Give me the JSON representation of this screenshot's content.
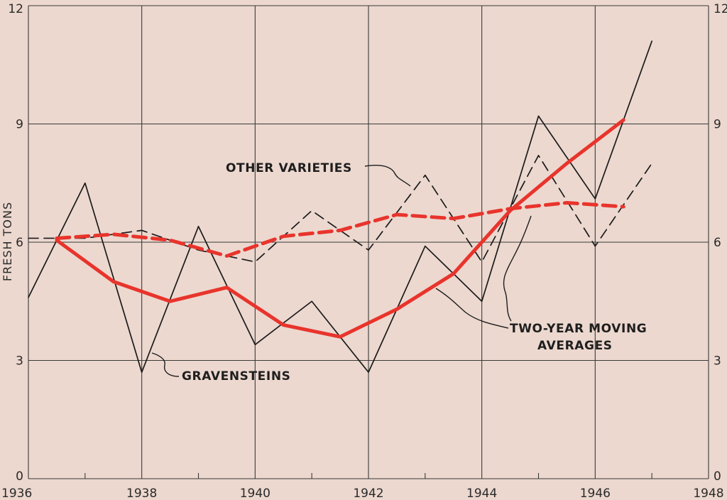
{
  "chart_data": {
    "type": "line",
    "ylabel": "FRESH TONS",
    "xlim": [
      1936,
      1948
    ],
    "ylim": [
      0,
      12
    ],
    "x_ticks": [
      "1936",
      "1938",
      "1940",
      "1942",
      "1944",
      "1946",
      "1948"
    ],
    "y_ticks": [
      "0",
      "3",
      "6",
      "9",
      "12"
    ],
    "grid": true,
    "series": [
      {
        "name": "GRAVENSTEINS",
        "style": "thin-solid",
        "color": "#1a1a1a",
        "x": [
          1936,
          1937,
          1938,
          1939,
          1940,
          1941,
          1942,
          1943,
          1944,
          1945,
          1946,
          1947
        ],
        "y": [
          4.6,
          7.5,
          2.7,
          6.4,
          3.4,
          4.5,
          2.7,
          5.9,
          4.5,
          9.2,
          7.1,
          11.1
        ]
      },
      {
        "name": "OTHER VARIETIES",
        "style": "thin-dashed",
        "color": "#1a1a1a",
        "x": [
          1936,
          1937,
          1938,
          1939,
          1940,
          1941,
          1942,
          1943,
          1944,
          1945,
          1946,
          1947
        ],
        "y": [
          6.1,
          6.1,
          6.3,
          5.8,
          5.5,
          6.8,
          5.8,
          7.7,
          5.5,
          8.2,
          5.9,
          8.0
        ]
      },
      {
        "name": "TWO-YEAR MOVING AVERAGES",
        "style": "thick-solid",
        "color": "#e8342c",
        "x": [
          1936.5,
          1937.5,
          1938.5,
          1939.5,
          1940.5,
          1941.5,
          1942.5,
          1943.5,
          1944.5,
          1945.5,
          1946.5
        ],
        "y": [
          6.05,
          5.0,
          4.5,
          4.85,
          3.9,
          3.6,
          4.3,
          5.2,
          6.8,
          8.0,
          9.1
        ]
      },
      {
        "name": "TWO-YEAR MOVING AVERAGES",
        "style": "thick-dashed",
        "color": "#e8342c",
        "x": [
          1936.5,
          1937.5,
          1938.5,
          1939.5,
          1940.5,
          1941.5,
          1942.5,
          1943.5,
          1944.5,
          1945.5,
          1946.5
        ],
        "y": [
          6.1,
          6.2,
          6.05,
          5.65,
          6.15,
          6.3,
          6.7,
          6.6,
          6.85,
          7.0,
          6.9
        ]
      }
    ],
    "annotations": {
      "other_varieties": "OTHER VARIETIES",
      "gravensteins": "GRAVENSTEINS",
      "moving_avg_line1": "TWO-YEAR MOVING",
      "moving_avg_line2": "AVERAGES"
    }
  },
  "colors": {
    "background": "#ecd8cf",
    "grid": "#3a3a3a",
    "ink": "#1a1a1a",
    "accent": "#e8342c"
  }
}
